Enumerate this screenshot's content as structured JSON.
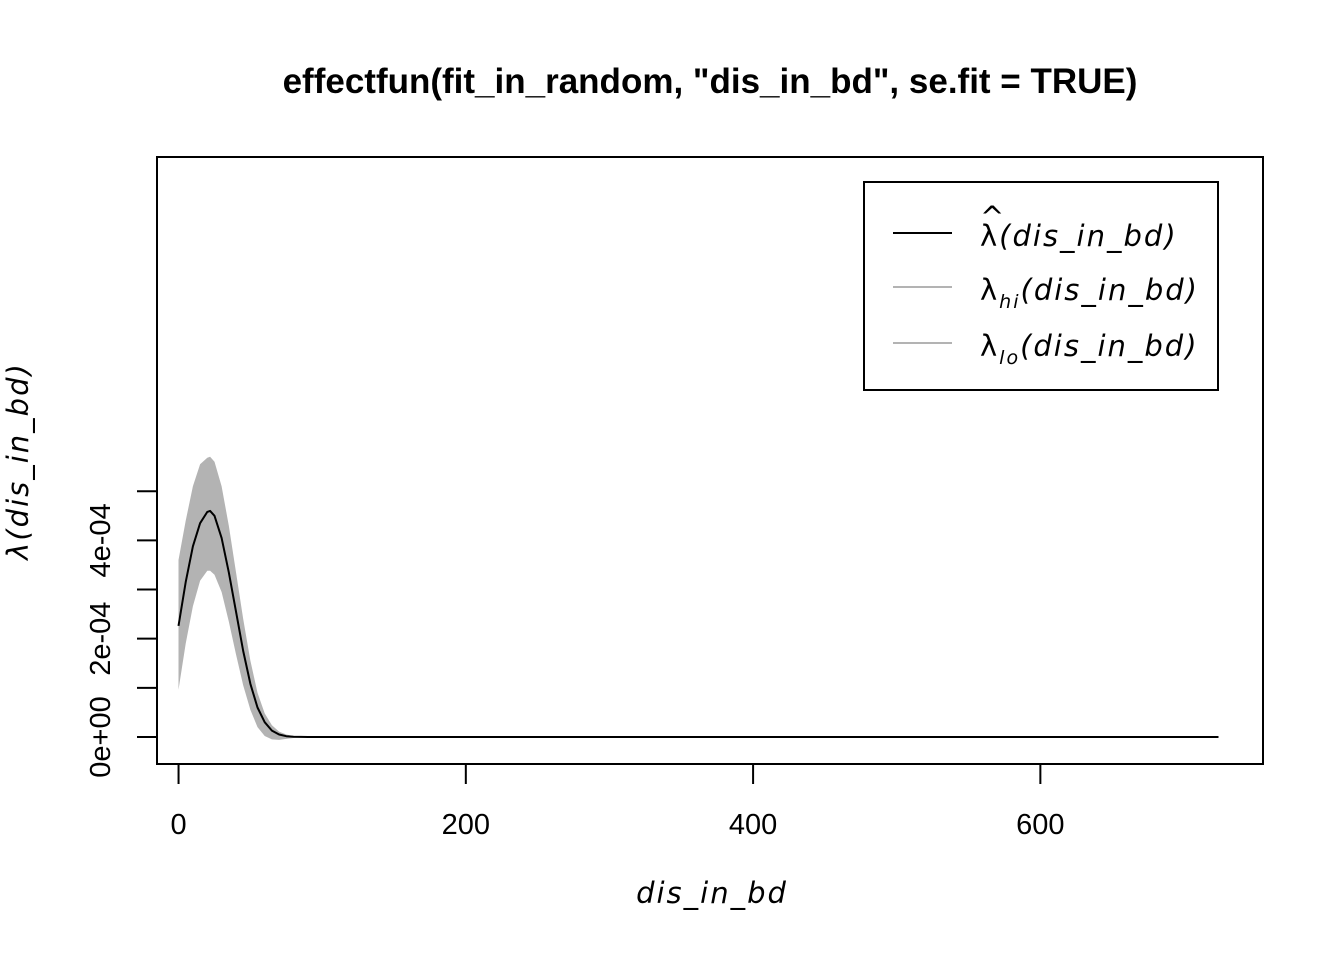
{
  "chart_data": {
    "type": "line",
    "title": "effectfun(fit_in_random, \"dis_in_bd\", se.fit = TRUE)",
    "xlabel": "dis_in_bd",
    "ylabel": "λ(dis_in_bd)",
    "xlim": [
      -15,
      755
    ],
    "ylim": [
      -5.5e-05,
      0.00118
    ],
    "x_ticks": [
      0,
      200,
      400,
      600
    ],
    "x_tick_labels": [
      "0",
      "200",
      "400",
      "600"
    ],
    "y_ticks": [
      0,
      0.0002,
      0.0004
    ],
    "y_tick_labels": [
      "0e+00",
      "2e-04",
      "4e-04"
    ],
    "y_minor_ticks": [
      0.0001,
      0.0003,
      0.0005
    ],
    "grid": false,
    "legend_position": "top-right",
    "band_color": "#b3b3b3",
    "line_color": "#000000",
    "x": [
      0,
      5,
      10,
      15,
      20,
      22,
      25,
      30,
      35,
      40,
      45,
      50,
      55,
      60,
      65,
      70,
      75,
      80,
      90,
      100,
      150,
      200,
      300,
      400,
      500,
      600,
      700,
      724
    ],
    "series": [
      {
        "name": "λ̂(dis_in_bd)",
        "legend_hat": "^",
        "legend_base": "λ",
        "legend_sub": "",
        "legend_arg": "(dis_in_bd)",
        "color": "#000000",
        "values": [
          0.000226,
          0.000315,
          0.000388,
          0.000435,
          0.000458,
          0.00046,
          0.00045,
          0.000405,
          0.000335,
          0.000255,
          0.000175,
          0.000108,
          6e-05,
          3e-05,
          1.3e-05,
          5e-06,
          1.5e-06,
          5e-07,
          0,
          0,
          0,
          0,
          0,
          0,
          0,
          0,
          0,
          0
        ]
      },
      {
        "name": "λhi(dis_in_bd)",
        "legend_hat": "",
        "legend_base": "λ",
        "legend_sub": "hi",
        "legend_arg": "(dis_in_bd)",
        "color": "#b3b3b3",
        "values": [
          0.00036,
          0.00044,
          0.00051,
          0.000555,
          0.000568,
          0.00057,
          0.00056,
          0.00051,
          0.00043,
          0.000335,
          0.00024,
          0.000155,
          9e-05,
          4.8e-05,
          2.4e-05,
          1.1e-05,
          5e-06,
          2e-06,
          5e-07,
          0,
          0,
          0,
          0,
          0,
          0,
          0,
          0,
          0
        ]
      },
      {
        "name": "λlo(dis_in_bd)",
        "legend_hat": "",
        "legend_base": "λ",
        "legend_sub": "lo",
        "legend_arg": "(dis_in_bd)",
        "color": "#b3b3b3",
        "values": [
          9.6e-05,
          0.00019,
          0.000266,
          0.000318,
          0.000338,
          0.000338,
          0.00033,
          0.000295,
          0.000235,
          0.000168,
          0.000105,
          5.5e-05,
          2e-05,
          2e-06,
          -5e-06,
          -6e-06,
          -4e-06,
          -2e-06,
          -5e-07,
          0,
          0,
          0,
          0,
          0,
          0,
          0,
          0,
          0
        ]
      }
    ]
  }
}
